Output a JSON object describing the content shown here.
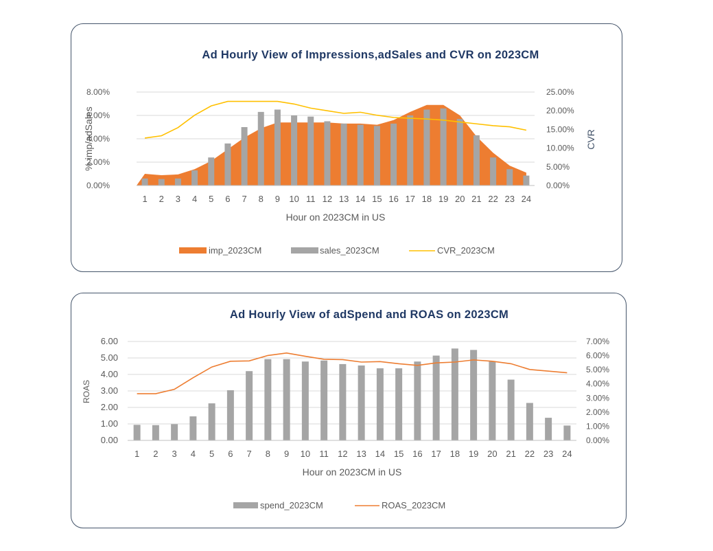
{
  "charts": [
    {
      "title": "Ad Hourly View of Impressions,adSales and CVR on 2023CM",
      "xlabel": "Hour on 2023CM in US",
      "ylabel_left": "% imp/adSales",
      "ylabel_right": "CVR",
      "legend": [
        "imp_2023CM",
        "sales_2023CM",
        "CVR_2023CM"
      ]
    },
    {
      "title": "Ad Hourly View of adSpend and ROAS on 2023CM",
      "xlabel": "Hour on 2023CM in US",
      "ylabel_left": "ROAS",
      "legend": [
        "spend_2023CM",
        "ROAS_2023CM"
      ]
    }
  ],
  "colors": {
    "imp": "#ed7d31",
    "sales": "#a5a5a5",
    "cvr": "#ffc000",
    "spend": "#a5a5a5",
    "roas": "#ed7d31",
    "border": "#44546a",
    "title": "#1f3864"
  },
  "chart_data": [
    {
      "type": "bar",
      "title": "Ad Hourly View of Impressions,adSales and CVR on 2023CM",
      "xlabel": "Hour on 2023CM in US",
      "ylabel": "% imp/adSales",
      "y2label": "CVR",
      "categories": [
        "1",
        "2",
        "3",
        "4",
        "5",
        "6",
        "7",
        "8",
        "9",
        "10",
        "11",
        "12",
        "13",
        "14",
        "15",
        "16",
        "17",
        "18",
        "19",
        "20",
        "21",
        "22",
        "23",
        "24"
      ],
      "ylim": [
        0,
        0.08
      ],
      "y2lim": [
        0,
        0.25
      ],
      "yticks": [
        "0.00%",
        "2.00%",
        "4.00%",
        "6.00%",
        "8.00%"
      ],
      "y2ticks": [
        "0.00%",
        "5.00%",
        "10.00%",
        "15.00%",
        "20.00%",
        "25.00%"
      ],
      "legend_position": "bottom",
      "grid": true,
      "series": [
        {
          "name": "imp_2023CM",
          "type": "area",
          "axis": "left",
          "values": [
            0.01,
            0.0088,
            0.0095,
            0.014,
            0.021,
            0.031,
            0.041,
            0.049,
            0.054,
            0.054,
            0.054,
            0.054,
            0.053,
            0.053,
            0.052,
            0.056,
            0.063,
            0.069,
            0.069,
            0.06,
            0.042,
            0.028,
            0.017,
            0.011
          ]
        },
        {
          "name": "sales_2023CM",
          "type": "bar",
          "axis": "left",
          "values": [
            0.006,
            0.0055,
            0.006,
            0.013,
            0.024,
            0.036,
            0.05,
            0.063,
            0.065,
            0.06,
            0.059,
            0.055,
            0.053,
            0.052,
            0.051,
            0.053,
            0.06,
            0.065,
            0.066,
            0.057,
            0.043,
            0.024,
            0.014,
            0.0085
          ]
        },
        {
          "name": "CVR_2023CM",
          "type": "line",
          "axis": "right",
          "values": [
            0.127,
            0.133,
            0.155,
            0.188,
            0.213,
            0.225,
            0.225,
            0.225,
            0.225,
            0.218,
            0.207,
            0.2,
            0.193,
            0.196,
            0.188,
            0.182,
            0.18,
            0.178,
            0.175,
            0.17,
            0.165,
            0.16,
            0.157,
            0.148
          ]
        }
      ]
    },
    {
      "type": "bar",
      "title": "Ad Hourly View of adSpend and ROAS on 2023CM",
      "xlabel": "Hour on 2023CM in US",
      "ylabel": "ROAS",
      "categories": [
        "1",
        "2",
        "3",
        "4",
        "5",
        "6",
        "7",
        "8",
        "9",
        "10",
        "11",
        "12",
        "13",
        "14",
        "15",
        "16",
        "17",
        "18",
        "19",
        "20",
        "21",
        "22",
        "23",
        "24"
      ],
      "ylim": [
        0,
        6
      ],
      "y2lim": [
        0,
        0.07
      ],
      "yticks": [
        "0.00",
        "1.00",
        "2.00",
        "3.00",
        "4.00",
        "5.00",
        "6.00"
      ],
      "y2ticks": [
        "0.00%",
        "1.00%",
        "2.00%",
        "3.00%",
        "4.00%",
        "5.00%",
        "6.00%",
        "7.00%"
      ],
      "legend_position": "bottom",
      "grid": true,
      "series": [
        {
          "name": "spend_2023CM",
          "type": "bar",
          "axis": "right",
          "values": [
            0.011,
            0.0108,
            0.0115,
            0.017,
            0.0262,
            0.0355,
            0.049,
            0.0575,
            0.0575,
            0.0558,
            0.0565,
            0.054,
            0.053,
            0.051,
            0.051,
            0.0558,
            0.06,
            0.065,
            0.064,
            0.0558,
            0.043,
            0.0265,
            0.016,
            0.0105
          ]
        },
        {
          "name": "ROAS_2023CM",
          "type": "line",
          "axis": "left",
          "values": [
            2.83,
            2.83,
            3.1,
            3.8,
            4.45,
            4.8,
            4.82,
            5.15,
            5.3,
            5.1,
            4.92,
            4.9,
            4.75,
            4.78,
            4.65,
            4.55,
            4.7,
            4.75,
            4.88,
            4.8,
            4.65,
            4.3,
            4.2,
            4.1
          ]
        }
      ]
    }
  ]
}
